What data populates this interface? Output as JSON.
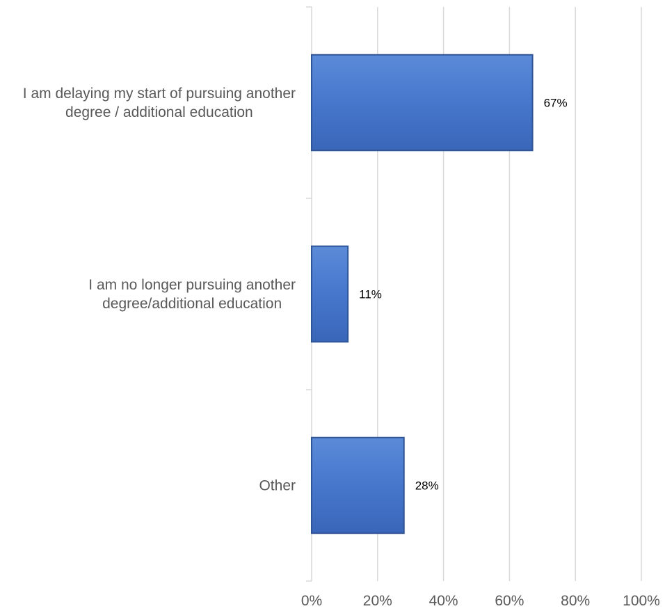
{
  "chart_data": {
    "type": "bar",
    "orientation": "horizontal",
    "categories": [
      [
        "I am delaying my start of pursuing another",
        "degree / additional education"
      ],
      [
        "I am no longer pursuing another",
        "degree/additional education"
      ],
      [
        "Other"
      ]
    ],
    "values": [
      67,
      11,
      28
    ],
    "data_labels": [
      "67%",
      "11%",
      "28%"
    ],
    "xlim": [
      0,
      100
    ],
    "x_ticks": [
      0,
      20,
      40,
      60,
      80,
      100
    ],
    "x_tick_labels": [
      "0%",
      "20%",
      "40%",
      "60%",
      "80%",
      "100%"
    ],
    "grid": true,
    "legend": "none",
    "colors": {
      "bar": "#4472C4",
      "bar_edge": "#2F5597",
      "grid": "#D9D9D9",
      "axis_text": "#595959"
    }
  }
}
